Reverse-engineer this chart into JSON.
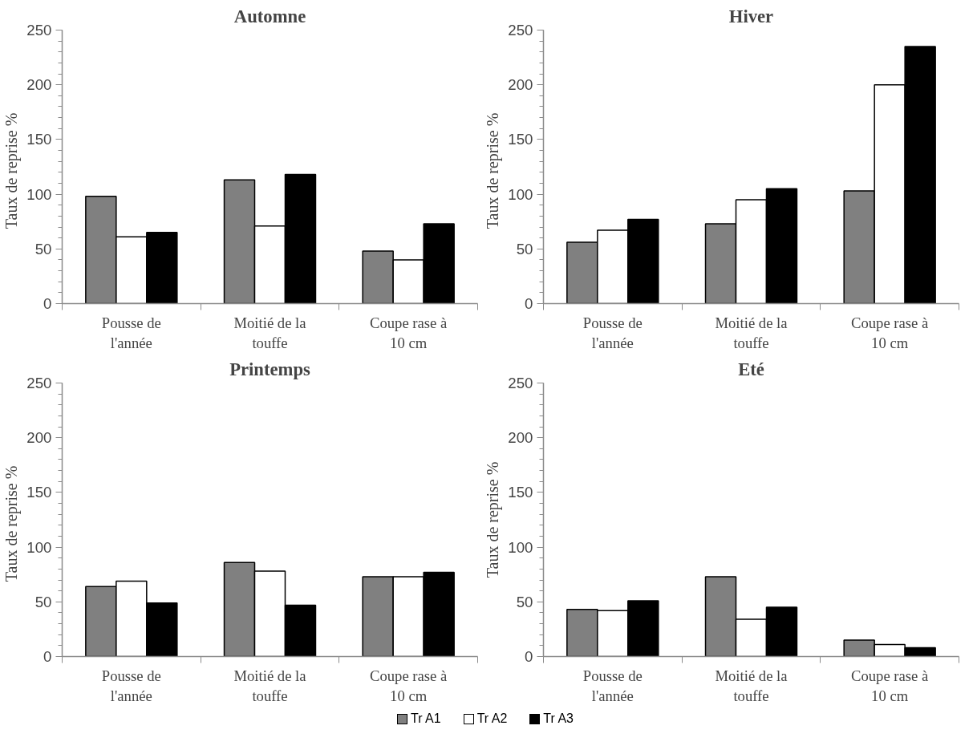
{
  "chart_data": [
    {
      "type": "bar",
      "title": "Automne",
      "ylabel": "Taux de reprise   %",
      "categories": [
        "Pousse de\nl'année",
        "Moitié de la\ntouffe",
        "Coupe rase à\n10 cm"
      ],
      "ylim": [
        0,
        250
      ],
      "yticks": [
        0,
        50,
        100,
        150,
        200,
        250
      ],
      "series": [
        {
          "color": "#808080",
          "values": [
            98,
            113,
            48
          ]
        },
        {
          "color": "#ffffff",
          "values": [
            61,
            71,
            40
          ]
        },
        {
          "color": "#000000",
          "values": [
            65,
            118,
            73
          ]
        }
      ]
    },
    {
      "type": "bar",
      "title": "Hiver",
      "ylabel": "Taux de reprise   %",
      "categories": [
        "Pousse de\nl'année",
        "Moitié de la\ntouffe",
        "Coupe rase à\n10 cm"
      ],
      "ylim": [
        0,
        250
      ],
      "yticks": [
        0,
        50,
        100,
        150,
        200,
        250
      ],
      "series": [
        {
          "color": "#808080",
          "values": [
            56,
            73,
            103
          ]
        },
        {
          "color": "#ffffff",
          "values": [
            67,
            95,
            200
          ]
        },
        {
          "color": "#000000",
          "values": [
            77,
            105,
            235
          ]
        }
      ]
    },
    {
      "type": "bar",
      "title": "Printemps",
      "ylabel": "Taux de reprise   %",
      "categories": [
        "Pousse de\nl'année",
        "Moitié de la\ntouffe",
        "Coupe rase à\n10 cm"
      ],
      "ylim": [
        0,
        250
      ],
      "yticks": [
        0,
        50,
        100,
        150,
        200,
        250
      ],
      "series": [
        {
          "color": "#808080",
          "values": [
            64,
            86,
            73
          ]
        },
        {
          "color": "#ffffff",
          "values": [
            69,
            78,
            73
          ]
        },
        {
          "color": "#000000",
          "values": [
            49,
            47,
            77
          ]
        }
      ]
    },
    {
      "type": "bar",
      "title": "Eté",
      "ylabel": "Taux de reprise %",
      "categories": [
        "Pousse de\nl'année",
        "Moitié de la\ntouffe",
        "Coupe rase à\n10 cm"
      ],
      "ylim": [
        0,
        250
      ],
      "yticks": [
        0,
        50,
        100,
        150,
        200,
        250
      ],
      "legend": "bottom",
      "series": [
        {
          "name": "Tr A1",
          "color": "#808080",
          "values": [
            43,
            73,
            15
          ]
        },
        {
          "name": "Tr A2",
          "color": "#ffffff",
          "values": [
            42,
            34,
            11
          ]
        },
        {
          "name": "Tr A3",
          "color": "#000000",
          "values": [
            51,
            45,
            8
          ]
        }
      ]
    }
  ]
}
